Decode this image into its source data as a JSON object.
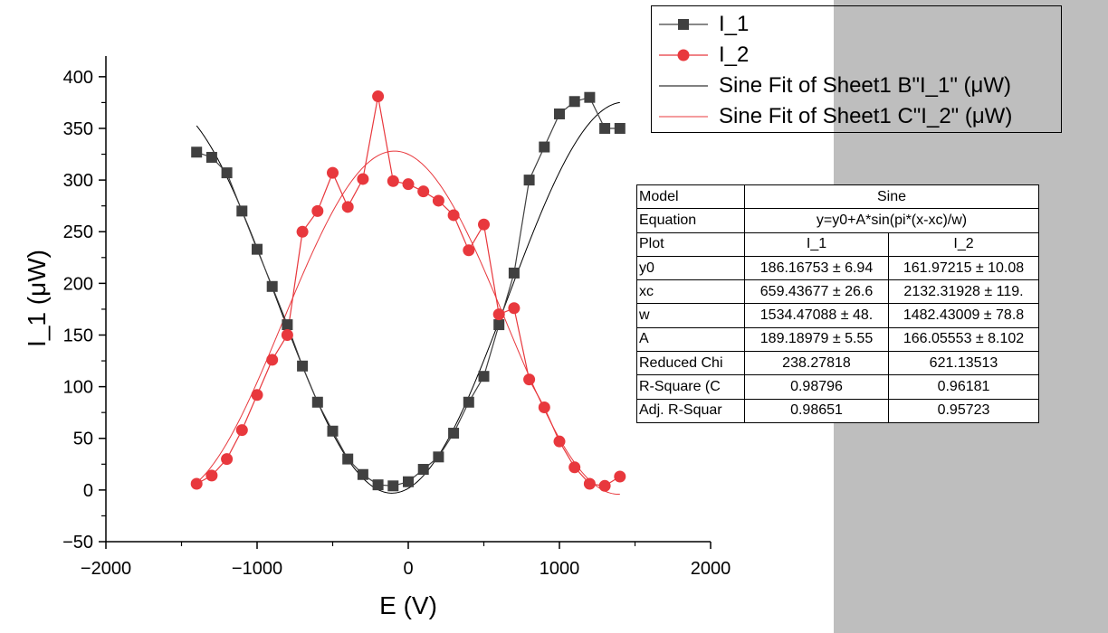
{
  "chart_data": {
    "type": "scatter",
    "xlabel": "E (V)",
    "ylabel": "I_1 (μW)",
    "xlim": [
      -2000,
      2000
    ],
    "ylim": [
      -50,
      420
    ],
    "x_ticks": [
      -2000,
      -1000,
      0,
      1000,
      2000
    ],
    "x_tick_labels": [
      "−2000",
      "−1000",
      "0",
      "1000",
      "2000"
    ],
    "y_ticks": [
      -50,
      0,
      50,
      100,
      150,
      200,
      250,
      300,
      350,
      400
    ],
    "y_tick_labels": [
      "−50",
      "0",
      "50",
      "100",
      "150",
      "200",
      "250",
      "300",
      "350",
      "400"
    ],
    "grid": false,
    "legend_position": "top-right",
    "x": [
      -1400,
      -1300,
      -1200,
      -1100,
      -1000,
      -900,
      -800,
      -700,
      -600,
      -500,
      -400,
      -300,
      -200,
      -100,
      0,
      100,
      200,
      300,
      400,
      500,
      600,
      700,
      800,
      900,
      1000,
      1100,
      1200,
      1300,
      1400
    ],
    "series": [
      {
        "name": "I_1",
        "kind": "line+markers",
        "marker": "square",
        "color": "#404040",
        "values": [
          327,
          322,
          307,
          270,
          233,
          197,
          160,
          120,
          85,
          57,
          30,
          15,
          5,
          4,
          8,
          20,
          32,
          55,
          85,
          110,
          160,
          210,
          300,
          332,
          364,
          376,
          380,
          350,
          350
        ]
      },
      {
        "name": "I_2",
        "kind": "line+markers",
        "marker": "circle",
        "color": "#e8383d",
        "values": [
          6,
          14,
          30,
          58,
          92,
          126,
          150,
          250,
          270,
          307,
          274,
          301,
          381,
          299,
          296,
          289,
          280,
          266,
          232,
          257,
          170,
          176,
          107,
          80,
          47,
          22,
          6,
          4,
          13
        ]
      },
      {
        "name": "Sine Fit of Sheet1 B\"I_1\" (μW)",
        "kind": "fit",
        "color": "#000000",
        "fit": {
          "y0": 186.16753,
          "xc": 659.43677,
          "w": 1534.47088,
          "A": 189.18979
        },
        "x_range": [
          -1400,
          1400
        ]
      },
      {
        "name": "Sine Fit of Sheet1 C\"I_2\" (μW)",
        "kind": "fit",
        "color": "#e8383d",
        "fit": {
          "y0": 161.97215,
          "xc": 2132.31928,
          "w": 1482.43009,
          "A": 166.05553
        },
        "x_range": [
          -1400,
          1400
        ]
      }
    ]
  },
  "legend": {
    "items": [
      {
        "label": "I_1",
        "kind": "marker-line",
        "marker": "square",
        "color": "#404040"
      },
      {
        "label": "I_2",
        "kind": "marker-line",
        "marker": "circle",
        "color": "#e8383d"
      },
      {
        "label": "Sine Fit of Sheet1 B\"I_1\" (μW)",
        "kind": "line",
        "color": "#000000"
      },
      {
        "label": "Sine Fit of Sheet1 C\"I_2\" (μW)",
        "kind": "line",
        "color": "#e8383d"
      }
    ]
  },
  "fit_table": {
    "model_label": "Model",
    "model_value": "Sine",
    "equation_label": "Equation",
    "equation_value": "y=y0+A*sin(pi*(x-xc)/w)",
    "plot_label": "Plot",
    "plot_1": "I_1",
    "plot_2": "I_2",
    "rows": [
      {
        "label": "y0",
        "v1": "186.16753 ± 6.94",
        "v2": "161.97215 ± 10.08"
      },
      {
        "label": "xc",
        "v1": "659.43677 ± 26.6",
        "v2": "2132.31928 ± 119."
      },
      {
        "label": "w",
        "v1": "1534.47088 ± 48.",
        "v2": "1482.43009 ± 78.8"
      },
      {
        "label": "A",
        "v1": "189.18979 ± 5.55",
        "v2": "166.05553 ± 8.102"
      },
      {
        "label": "Reduced Chi",
        "v1": "238.27818",
        "v2": "621.13513"
      },
      {
        "label": "R-Square (C",
        "v1": "0.98796",
        "v2": "0.96181"
      },
      {
        "label": "Adj. R-Squar",
        "v1": "0.98651",
        "v2": "0.95723"
      }
    ]
  }
}
